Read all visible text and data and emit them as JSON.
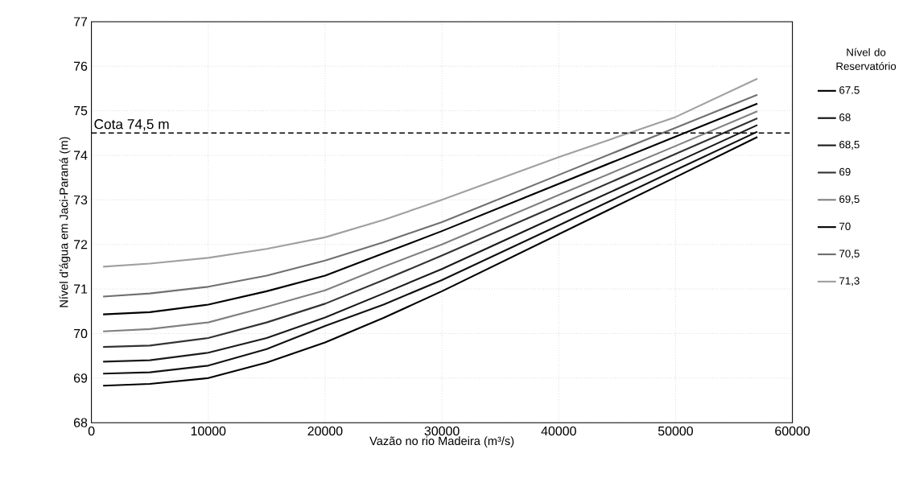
{
  "chart_data": {
    "type": "line",
    "xlabel": "Vazão no rio Madeira (m³/s)",
    "ylabel": "Nível d'água em Jaci-Paraná (m)",
    "legend_title": "Nível do Reservatório",
    "x": [
      1000,
      5000,
      10000,
      15000,
      20000,
      25000,
      30000,
      40000,
      50000,
      57000
    ],
    "series": [
      {
        "name": "67.5",
        "color": "#000000",
        "values": [
          68.83,
          68.87,
          69.0,
          69.35,
          69.8,
          70.35,
          70.95,
          72.23,
          73.51,
          74.41
        ]
      },
      {
        "name": "68",
        "color": "#111111",
        "values": [
          69.1,
          69.13,
          69.28,
          69.65,
          70.17,
          70.65,
          71.2,
          72.43,
          73.67,
          74.53
        ]
      },
      {
        "name": "68,5",
        "color": "#1a1a1a",
        "values": [
          69.37,
          69.4,
          69.57,
          69.9,
          70.36,
          70.9,
          71.45,
          72.65,
          73.84,
          74.68
        ]
      },
      {
        "name": "69",
        "color": "#333333",
        "values": [
          69.7,
          69.73,
          69.9,
          70.25,
          70.67,
          71.2,
          71.75,
          72.89,
          74.03,
          74.83
        ]
      },
      {
        "name": "69,5",
        "color": "#808080",
        "values": [
          70.05,
          70.1,
          70.25,
          70.6,
          70.97,
          71.5,
          72.0,
          73.11,
          74.21,
          74.99
        ]
      },
      {
        "name": "70",
        "color": "#000000",
        "values": [
          70.43,
          70.48,
          70.65,
          70.95,
          71.3,
          71.8,
          72.3,
          73.36,
          74.42,
          75.16
        ]
      },
      {
        "name": "70,5",
        "color": "#707070",
        "values": [
          70.83,
          70.9,
          71.05,
          71.3,
          71.64,
          72.05,
          72.5,
          73.56,
          74.62,
          75.36
        ]
      },
      {
        "name": "71,3",
        "color": "#a0a0a0",
        "values": [
          71.5,
          71.57,
          71.7,
          71.9,
          72.16,
          72.55,
          73.0,
          73.96,
          74.86,
          75.72
        ]
      }
    ],
    "xlim": [
      0,
      60000
    ],
    "xticks": [
      0,
      10000,
      20000,
      30000,
      40000,
      50000,
      60000
    ],
    "ylim": [
      68,
      77
    ],
    "yticks": [
      68,
      69,
      70,
      71,
      72,
      73,
      74,
      75,
      76,
      77
    ],
    "ref_lines": [
      {
        "axis": "y",
        "value": 74.5,
        "label": "Cota 74,5 m",
        "color": "#000000",
        "line_style": "dashed"
      }
    ],
    "grid": true,
    "legend": "right",
    "line_style": "solid"
  }
}
